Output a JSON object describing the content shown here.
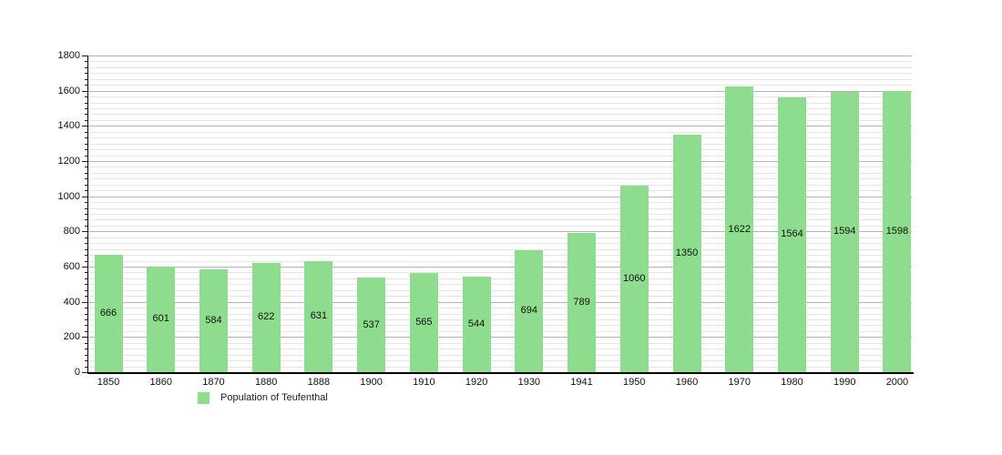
{
  "chart_data": {
    "type": "bar",
    "title": "",
    "categories": [
      "1850",
      "1860",
      "1870",
      "1880",
      "1888",
      "1900",
      "1910",
      "1920",
      "1930",
      "1941",
      "1950",
      "1960",
      "1970",
      "1980",
      "1990",
      "2000"
    ],
    "values": [
      666,
      601,
      584,
      622,
      631,
      537,
      565,
      544,
      694,
      789,
      1060,
      1350,
      1622,
      1564,
      1594,
      1598
    ],
    "xlabel": "",
    "ylabel": "",
    "ylim": [
      0,
      1800
    ],
    "ytick_step": 200,
    "minor_divisions_per_major": 6,
    "grid": true,
    "bar_value_labels": "centered-inside-bars",
    "legend": "Population of Teufenthal",
    "legend_position": "bottom-left",
    "colors": {
      "bar": "#8edc8e",
      "grid_minor": "#e6e6e6",
      "grid_major": "#b5b5b5",
      "axis": "#000000",
      "text": "#111111",
      "background": "#ffffff"
    }
  }
}
